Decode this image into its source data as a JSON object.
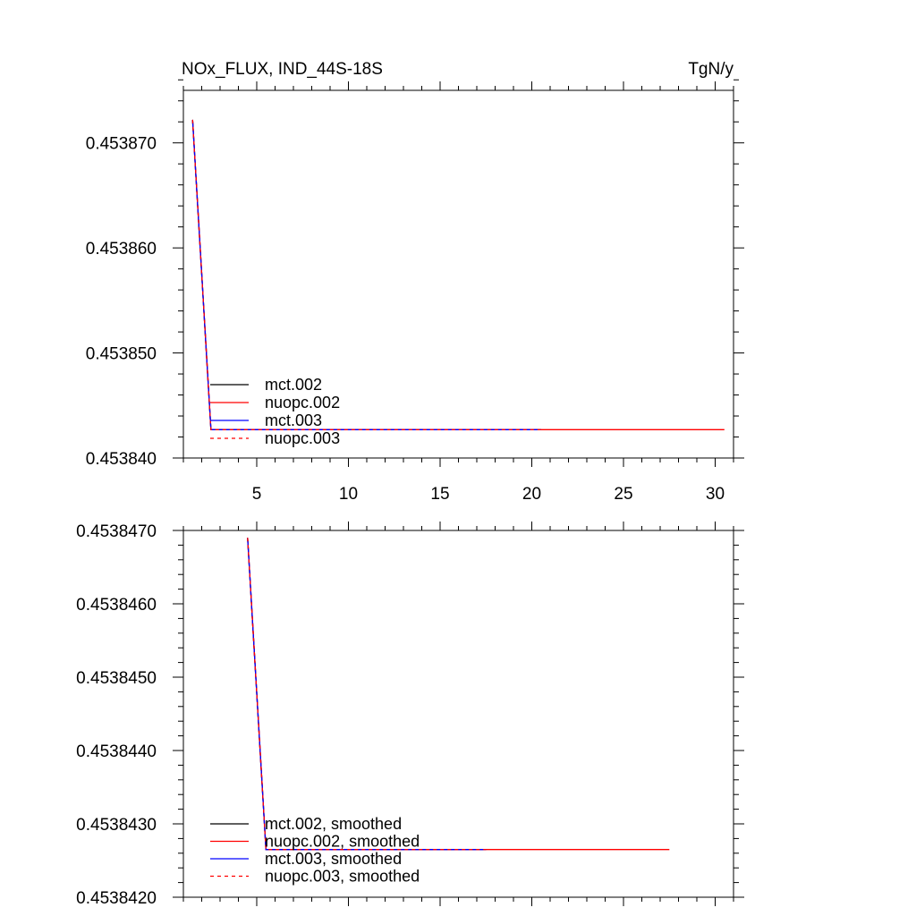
{
  "figure": {
    "title_left": "NOx_FLUX, IND_44S-18S",
    "title_right": "TgN/y"
  },
  "chart_data": [
    {
      "type": "line",
      "panel": "top",
      "title": "NOx_FLUX, IND_44S-18S",
      "units": "TgN/y",
      "xlim": [
        1,
        31
      ],
      "ylim": [
        0.45384,
        0.453875
      ],
      "x_ticks": [
        5,
        10,
        15,
        20,
        25,
        30
      ],
      "x_tick_labels": [
        "5",
        "10",
        "15",
        "20",
        "25",
        "30"
      ],
      "y_ticks": [
        0.45384,
        0.45385,
        0.45386,
        0.45387
      ],
      "y_tick_labels": [
        "0.453840",
        "0.453850",
        "0.453860",
        "0.453870"
      ],
      "legend": [
        "mct.002",
        "nuopc.002",
        "mct.003",
        "nuopc.003"
      ],
      "legend_location": "lower-left",
      "series": [
        {
          "name": "mct.002",
          "color": "#000000",
          "dash": "solid",
          "x": [
            1.5,
            2.5,
            20.5
          ],
          "y": [
            0.4538722,
            0.4538427,
            0.4538427
          ]
        },
        {
          "name": "nuopc.002",
          "color": "#ff0000",
          "dash": "solid",
          "x": [
            1.5,
            2.5,
            30.5
          ],
          "y": [
            0.4538722,
            0.4538427,
            0.4538427
          ]
        },
        {
          "name": "mct.003",
          "color": "#0000ff",
          "dash": "solid",
          "x": [
            1.5,
            2.5,
            20.5
          ],
          "y": [
            0.4538722,
            0.4538427,
            0.4538427
          ]
        },
        {
          "name": "nuopc.003",
          "color": "#ff0000",
          "dash": "dashed",
          "x": [
            1.5,
            2.5,
            20.5
          ],
          "y": [
            0.4538722,
            0.4538427,
            0.4538427
          ]
        }
      ]
    },
    {
      "type": "line",
      "panel": "bottom",
      "xlim": [
        1,
        31
      ],
      "ylim": [
        0.453842,
        0.453847
      ],
      "x_ticks": [
        5,
        10,
        15,
        20,
        25,
        30
      ],
      "y_ticks": [
        0.453842,
        0.453843,
        0.453844,
        0.453845,
        0.453846,
        0.453847
      ],
      "y_tick_labels": [
        "0.4538420",
        "0.4538430",
        "0.4538440",
        "0.4538450",
        "0.4538460",
        "0.4538470"
      ],
      "legend": [
        "mct.002, smoothed",
        "nuopc.002, smoothed",
        "mct.003, smoothed",
        "nuopc.003, smoothed"
      ],
      "legend_location": "lower-left",
      "series": [
        {
          "name": "mct.002, smoothed",
          "color": "#000000",
          "dash": "solid",
          "x": [
            4.5,
            5.5,
            17.5
          ],
          "y": [
            0.4538469,
            0.45384265,
            0.45384265
          ]
        },
        {
          "name": "nuopc.002, smoothed",
          "color": "#ff0000",
          "dash": "solid",
          "x": [
            4.5,
            5.5,
            27.5
          ],
          "y": [
            0.4538469,
            0.45384265,
            0.45384265
          ]
        },
        {
          "name": "mct.003, smoothed",
          "color": "#0000ff",
          "dash": "solid",
          "x": [
            4.5,
            5.5,
            17.5
          ],
          "y": [
            0.4538469,
            0.45384265,
            0.45384265
          ]
        },
        {
          "name": "nuopc.003, smoothed",
          "color": "#ff0000",
          "dash": "dashed",
          "x": [
            4.5,
            5.5,
            17.5
          ],
          "y": [
            0.4538469,
            0.45384265,
            0.45384265
          ]
        }
      ]
    }
  ]
}
